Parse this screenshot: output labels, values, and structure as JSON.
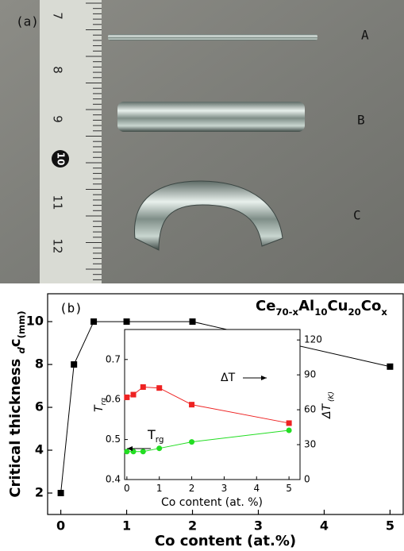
{
  "photo": {
    "panel_label": "(a)",
    "sample_labels": [
      "A",
      "B",
      "C"
    ],
    "ruler_numbers": [
      "7",
      "8",
      "9",
      "10",
      "11",
      "12"
    ]
  },
  "chart_data": [
    {
      "type": "line",
      "title_parts": [
        "Ce",
        "70-x",
        "Al",
        "10",
        "Cu",
        "20",
        "Co",
        "x"
      ],
      "panel_label": "(b)",
      "xlabel": "Co content (at.%)",
      "ylabel_parts": [
        "Critical thickness ",
        "d",
        "c",
        "(mm)"
      ],
      "x": [
        0,
        0.2,
        0.5,
        1,
        2,
        5
      ],
      "values": [
        2,
        8,
        10,
        10,
        10,
        7.9
      ],
      "color": "#000000",
      "marker": "square",
      "xlim": [
        -0.2,
        5.2
      ],
      "ylim": [
        1,
        11.3
      ],
      "xticks": [
        0,
        1,
        2,
        3,
        4,
        5
      ],
      "yticks": [
        2,
        4,
        6,
        8,
        10
      ]
    },
    {
      "type": "line",
      "xlabel": "Co content (at. %)",
      "ylabel_parts": [
        "T",
        "rg"
      ],
      "y2label_parts": [
        "ΔT",
        " (K)"
      ],
      "x": [
        0,
        0.2,
        0.5,
        1,
        2,
        5
      ],
      "series": [
        {
          "color": "#22dd22",
          "marker": "circle",
          "values": [
            0.47,
            0.47,
            0.47,
            0.478,
            0.494,
            0.523
          ]
        },
        {
          "color": "#ee2222",
          "marker": "square",
          "axis": "y2",
          "values": [
            70.7,
            73,
            79.5,
            78.7,
            64.4,
            48.5
          ]
        }
      ],
      "annotations": [
        {
          "text": "ΔT"
        },
        {
          "text_parts": [
            "T",
            "rg"
          ]
        }
      ],
      "xlim": [
        -0.07,
        5.34
      ],
      "ylim": [
        0.4,
        0.775
      ],
      "y2lim": [
        0,
        129
      ],
      "xticks": [
        0,
        1,
        2,
        3,
        4,
        5
      ],
      "yticks": [
        0.4,
        0.5,
        0.6,
        0.7
      ],
      "y2ticks": [
        0,
        30,
        60,
        90,
        120
      ]
    }
  ]
}
